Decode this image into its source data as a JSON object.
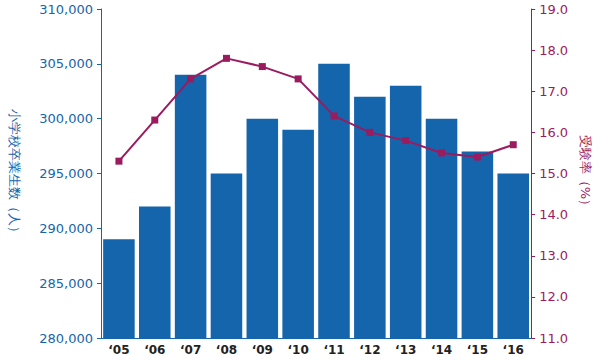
{
  "chart_data": {
    "type": "bar",
    "categories": [
      "‘05",
      "‘06",
      "‘07",
      "‘08",
      "‘09",
      "‘10",
      "‘11",
      "‘12",
      "‘13",
      "‘14",
      "‘15",
      "‘16"
    ],
    "ylabel": "小学校卒業生数（人）",
    "y2label": "受験率（%）",
    "series": [
      {
        "type": "bar",
        "color": "#1565ad",
        "axis": "y",
        "values": [
          289000,
          292000,
          304000,
          295000,
          300000,
          299000,
          305000,
          302000,
          303000,
          300000,
          297000,
          295000
        ]
      },
      {
        "type": "line",
        "color": "#9b1b5f",
        "axis": "y2",
        "marker": "square",
        "line_style": "solid",
        "values": [
          15.3,
          16.3,
          17.3,
          17.8,
          17.6,
          17.3,
          16.4,
          16.0,
          15.8,
          15.5,
          15.4,
          15.7
        ]
      }
    ],
    "ylim": [
      280000,
      310000
    ],
    "yticks": [
      {
        "value": 280000,
        "label": "280,000"
      },
      {
        "value": 285000,
        "label": "285,000"
      },
      {
        "value": 290000,
        "label": "290,000"
      },
      {
        "value": 295000,
        "label": "295,000"
      },
      {
        "value": 300000,
        "label": "300,000"
      },
      {
        "value": 305000,
        "label": "305,000"
      },
      {
        "value": 310000,
        "label": "310,000"
      }
    ],
    "y2lim": [
      11,
      19
    ],
    "y2ticks": [
      {
        "value": 11,
        "label": "11.0"
      },
      {
        "value": 12,
        "label": "12.0"
      },
      {
        "value": 13,
        "label": "13.0"
      },
      {
        "value": 14,
        "label": "14.0"
      },
      {
        "value": 15,
        "label": "15.0"
      },
      {
        "value": 16,
        "label": "16.0"
      },
      {
        "value": 17,
        "label": "17.0"
      },
      {
        "value": 18,
        "label": "18.0"
      },
      {
        "value": 19,
        "label": "19.0"
      }
    ],
    "grid": false
  }
}
